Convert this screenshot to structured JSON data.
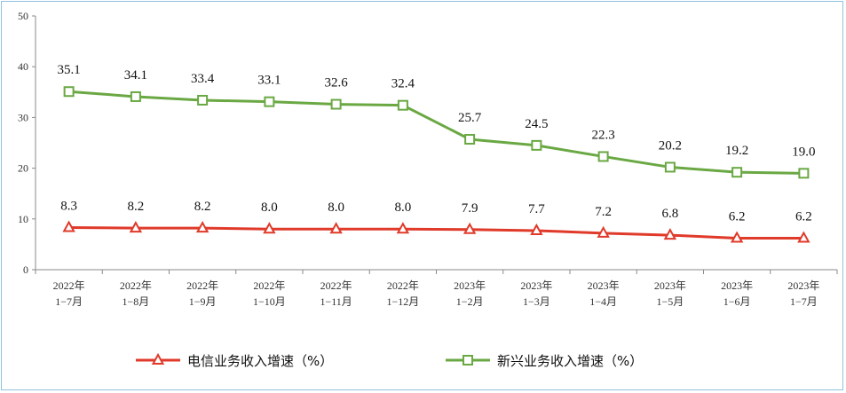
{
  "chart_data": {
    "type": "line",
    "categories": [
      [
        "2022年",
        "1−7月"
      ],
      [
        "2022年",
        "1−8月"
      ],
      [
        "2022年",
        "1−9月"
      ],
      [
        "2022年",
        "1−10月"
      ],
      [
        "2022年",
        "1−11月"
      ],
      [
        "2022年",
        "1−12月"
      ],
      [
        "2023年",
        "1−2月"
      ],
      [
        "2023年",
        "1−3月"
      ],
      [
        "2023年",
        "1−4月"
      ],
      [
        "2023年",
        "1−5月"
      ],
      [
        "2023年",
        "1−6月"
      ],
      [
        "2023年",
        "1−7月"
      ]
    ],
    "series": [
      {
        "name": "电信业务收入增速（%）",
        "color": "#e03a2a",
        "marker": "triangle",
        "values": [
          8.3,
          8.2,
          8.2,
          8.0,
          8.0,
          8.0,
          7.9,
          7.7,
          7.2,
          6.8,
          6.2,
          6.2
        ],
        "labels": [
          "8.3",
          "8.2",
          "8.2",
          "8.0",
          "8.0",
          "8.0",
          "7.9",
          "7.7",
          "7.2",
          "6.8",
          "6.2",
          "6.2"
        ]
      },
      {
        "name": "新兴业务收入增速（%）",
        "color": "#6aa843",
        "marker": "square",
        "values": [
          35.1,
          34.1,
          33.4,
          33.1,
          32.6,
          32.4,
          25.7,
          24.5,
          22.3,
          20.2,
          19.2,
          19.0
        ],
        "labels": [
          "35.1",
          "34.1",
          "33.4",
          "33.1",
          "32.6",
          "32.4",
          "25.7",
          "24.5",
          "22.3",
          "20.2",
          "19.2",
          "19.0"
        ]
      }
    ],
    "yticks": [
      0,
      10,
      20,
      30,
      40,
      50
    ],
    "ylim": [
      0,
      50
    ],
    "grid": false,
    "legend": "bottom"
  }
}
